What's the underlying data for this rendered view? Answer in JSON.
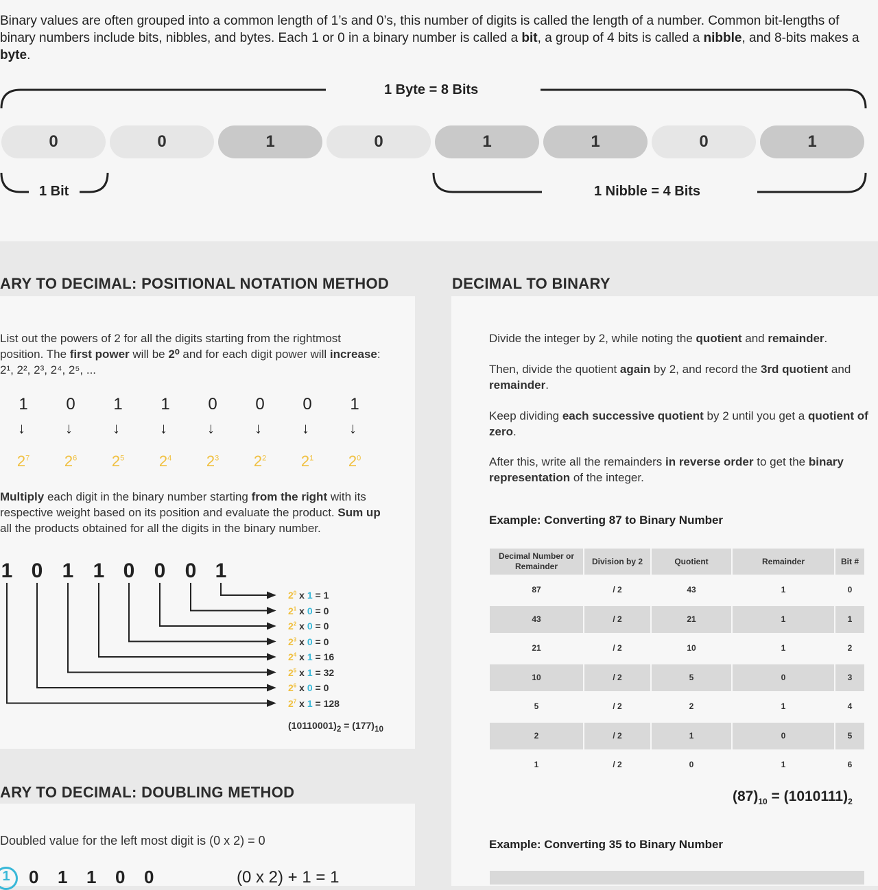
{
  "intro": {
    "parts": [
      "Binary values are often grouped into a common length of 1’s and 0’s, this number of digits is called the length of a number. Common bit-lengths of binary numbers include bits, nibbles, and bytes. Each 1 or 0 in a binary number is called a ",
      "bit",
      ", a group of 4 bits is called a ",
      "nibble",
      ", and 8-bits makes a ",
      "byte",
      "."
    ]
  },
  "byte_diagram": {
    "byte_label": "1 Byte = 8 Bits",
    "bit_label": "1 Bit",
    "nibble_label": "1 Nibble = 4 Bits",
    "bits": [
      "0",
      "0",
      "1",
      "0",
      "1",
      "1",
      "0",
      "1"
    ],
    "colors": {
      "one": "#c9c9c9",
      "zero": "#e6e6e6"
    }
  },
  "positional": {
    "title": "ARY TO DECIMAL: POSITIONAL NOTATION METHOD",
    "p1": [
      "List out the powers of 2 for all the digits starting from the rightmost position. The ",
      "first power",
      " will be ",
      "2⁰",
      " and for each digit power will ",
      "increase",
      ": 2¹, 2², 2³, 2⁴, 2⁵, ..."
    ],
    "digits": [
      "1",
      "0",
      "1",
      "1",
      "0",
      "0",
      "0",
      "1"
    ],
    "powers": [
      "7",
      "6",
      "5",
      "4",
      "3",
      "2",
      "1",
      "0"
    ],
    "p2": [
      "Multiply",
      " each digit in the binary number starting ",
      "from the right",
      " with its respective weight based on its position and evaluate the product. ",
      "Sum up",
      " all the products obtained for all the digits in the binary number."
    ],
    "big_digits": [
      "1",
      "0",
      "1",
      "1",
      "0",
      "0",
      "0",
      "1"
    ],
    "products": [
      {
        "pow": "0",
        "bit": "1",
        "val": "1"
      },
      {
        "pow": "1",
        "bit": "0",
        "val": "0"
      },
      {
        "pow": "2",
        "bit": "0",
        "val": "0"
      },
      {
        "pow": "3",
        "bit": "0",
        "val": "0"
      },
      {
        "pow": "4",
        "bit": "1",
        "val": "16"
      },
      {
        "pow": "5",
        "bit": "1",
        "val": "32"
      },
      {
        "pow": "6",
        "bit": "0",
        "val": "0"
      },
      {
        "pow": "7",
        "bit": "1",
        "val": "128"
      }
    ],
    "result": {
      "bin": "(10110001)",
      "b": "2",
      "eq": " = (177)",
      "d": "10"
    }
  },
  "doubling": {
    "title": "ARY TO DECIMAL: DOUBLING METHOD",
    "p1": "Doubled value for the left most digit is (0 x 2) = 0",
    "step": "1",
    "digits": [
      "0",
      "1",
      "1",
      "0",
      "0"
    ],
    "expr": "(0 x 2) + 1 = 1"
  },
  "d2b": {
    "title": "DECIMAL TO BINARY",
    "steps": [
      [
        "Divide the integer by 2, while noting the ",
        "quotient",
        " and ",
        "remainder",
        "."
      ],
      [
        "Then, divide the quotient ",
        "again",
        " by 2, and record the ",
        "3rd quotient",
        " and ",
        "remainder",
        "."
      ],
      [
        "Keep dividing ",
        "each successive quotient",
        " by 2 until you get a ",
        "quotient of zero",
        "."
      ],
      [
        "After this, write all the remainders ",
        "in reverse order",
        " to get the ",
        "binary representation",
        " of the integer."
      ]
    ],
    "example1": "Example: Converting 87 to Binary Number",
    "headers": [
      "Decimal Number or Remainder",
      "Division by 2",
      "Quotient",
      "Remainder",
      "Bit #"
    ],
    "rows": [
      [
        "87",
        "/ 2",
        "43",
        "1",
        "0"
      ],
      [
        "43",
        "/ 2",
        "21",
        "1",
        "1"
      ],
      [
        "21",
        "/ 2",
        "10",
        "1",
        "2"
      ],
      [
        "10",
        "/ 2",
        "5",
        "0",
        "3"
      ],
      [
        "5",
        "/ 2",
        "2",
        "1",
        "4"
      ],
      [
        "2",
        "/ 2",
        "1",
        "0",
        "5"
      ],
      [
        "1",
        "/ 2",
        "0",
        "1",
        "6"
      ]
    ],
    "result": {
      "a": "(87)",
      "as": "10",
      "b": " = (1010111)",
      "bs": "2"
    },
    "example2": "Example: Converting 35 to Binary Number"
  }
}
